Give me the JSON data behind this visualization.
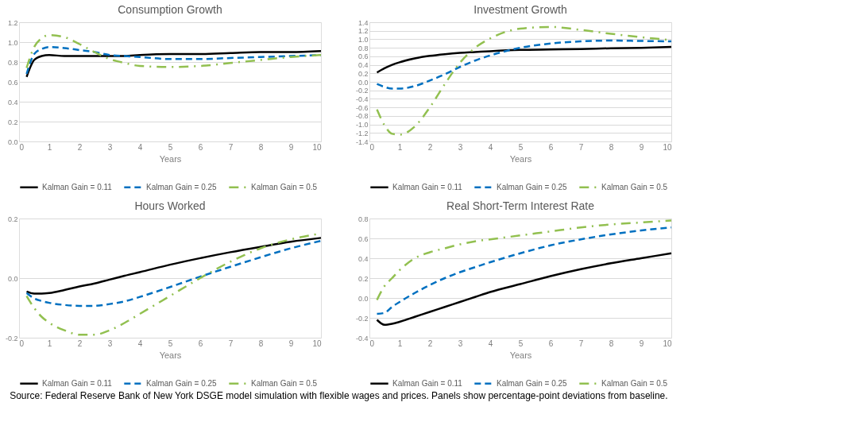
{
  "chart_data": [
    {
      "type": "line",
      "title": "Consumption Growth",
      "xlabel": "Years",
      "x": [
        0.25,
        0.5,
        0.75,
        1,
        1.5,
        2,
        2.5,
        3,
        3.5,
        4,
        5,
        6,
        7,
        8,
        9,
        10
      ],
      "series": [
        {
          "name": "Kalman Gain = 0.11",
          "color": "#000000",
          "line_style": "solid",
          "values": [
            0.65,
            0.82,
            0.86,
            0.87,
            0.86,
            0.86,
            0.86,
            0.86,
            0.86,
            0.87,
            0.88,
            0.88,
            0.89,
            0.9,
            0.9,
            0.91
          ]
        },
        {
          "name": "Kalman Gain = 0.25",
          "color": "#0070c0",
          "line_style": "dashed",
          "values": [
            0.68,
            0.88,
            0.93,
            0.95,
            0.94,
            0.92,
            0.9,
            0.87,
            0.86,
            0.85,
            0.83,
            0.83,
            0.84,
            0.85,
            0.86,
            0.87
          ]
        },
        {
          "name": "Kalman Gain = 0.5",
          "color": "#92c050",
          "line_style": "dotted",
          "values": [
            0.74,
            0.95,
            1.04,
            1.07,
            1.05,
            0.98,
            0.9,
            0.83,
            0.79,
            0.76,
            0.75,
            0.76,
            0.79,
            0.82,
            0.85,
            0.87
          ]
        }
      ],
      "xlim": [
        0,
        10
      ],
      "xticks": [
        0,
        1,
        2,
        3,
        4,
        5,
        6,
        7,
        8,
        9,
        10
      ],
      "ylim": [
        0,
        1.2
      ],
      "yticks": [
        {
          "value": 0,
          "label": "0.0"
        },
        0.2,
        0.4,
        0.6,
        0.8,
        {
          "value": 1,
          "label": "1.0"
        },
        1.2
      ],
      "grid": "y",
      "legend": "bottom"
    },
    {
      "type": "line",
      "title": "Investment Growth",
      "xlabel": "Years",
      "x": [
        0.25,
        0.5,
        0.75,
        1,
        1.5,
        2,
        2.5,
        3,
        3.5,
        4,
        5,
        6,
        7,
        8,
        9,
        10
      ],
      "series": [
        {
          "name": "Kalman Gain = 0.11",
          "color": "#000000",
          "line_style": "solid",
          "values": [
            0.22,
            0.32,
            0.4,
            0.46,
            0.55,
            0.61,
            0.65,
            0.68,
            0.7,
            0.72,
            0.75,
            0.76,
            0.77,
            0.79,
            0.8,
            0.82
          ]
        },
        {
          "name": "Kalman Gain = 0.25",
          "color": "#0070c0",
          "line_style": "dashed",
          "values": [
            -0.05,
            -0.12,
            -0.16,
            -0.16,
            -0.1,
            0.03,
            0.18,
            0.35,
            0.5,
            0.62,
            0.8,
            0.9,
            0.95,
            0.97,
            0.96,
            0.95
          ]
        },
        {
          "name": "Kalman Gain = 0.5",
          "color": "#92c050",
          "line_style": "dotted",
          "values": [
            -0.65,
            -1.02,
            -1.22,
            -1.24,
            -1.05,
            -0.6,
            -0.05,
            0.45,
            0.8,
            1.02,
            1.25,
            1.29,
            1.22,
            1.13,
            1.05,
            0.98
          ]
        }
      ],
      "xlim": [
        0,
        10
      ],
      "xticks": [
        0,
        1,
        2,
        3,
        4,
        5,
        6,
        7,
        8,
        9,
        10
      ],
      "ylim": [
        -1.4,
        1.4
      ],
      "yticks": [
        -1.4,
        -1.2,
        {
          "value": -1,
          "label": "-1.0"
        },
        -0.8,
        -0.6,
        -0.4,
        -0.2,
        {
          "value": 0,
          "label": "0.0"
        },
        0.2,
        0.4,
        0.6,
        0.8,
        {
          "value": 1,
          "label": "1.0"
        },
        1.2,
        1.4
      ],
      "grid": "y",
      "legend": "bottom"
    },
    {
      "type": "line",
      "title": "Hours Worked",
      "xlabel": "Years",
      "x": [
        0.25,
        0.5,
        0.75,
        1,
        1.5,
        2,
        2.5,
        3,
        3.5,
        4,
        5,
        6,
        7,
        8,
        9,
        10
      ],
      "series": [
        {
          "name": "Kalman Gain = 0.11",
          "color": "#000000",
          "line_style": "solid",
          "values": [
            -0.045,
            -0.052,
            -0.052,
            -0.05,
            -0.04,
            -0.028,
            -0.018,
            -0.005,
            0.008,
            0.02,
            0.045,
            0.067,
            0.087,
            0.105,
            0.122,
            0.135
          ]
        },
        {
          "name": "Kalman Gain = 0.25",
          "color": "#0070c0",
          "line_style": "dashed",
          "values": [
            -0.05,
            -0.068,
            -0.077,
            -0.083,
            -0.09,
            -0.093,
            -0.093,
            -0.087,
            -0.078,
            -0.063,
            -0.03,
            0.005,
            0.038,
            0.07,
            0.1,
            0.125
          ]
        },
        {
          "name": "Kalman Gain = 0.5",
          "color": "#92c050",
          "line_style": "dotted",
          "values": [
            -0.06,
            -0.1,
            -0.13,
            -0.15,
            -0.175,
            -0.19,
            -0.19,
            -0.175,
            -0.15,
            -0.12,
            -0.06,
            0.0,
            0.055,
            0.1,
            0.13,
            0.15
          ]
        }
      ],
      "xlim": [
        0,
        10
      ],
      "xticks": [
        0,
        1,
        2,
        3,
        4,
        5,
        6,
        7,
        8,
        9,
        10
      ],
      "ylim": [
        -0.2,
        0.2
      ],
      "yticks": [
        -0.2,
        {
          "value": 0,
          "label": "0.0"
        },
        0.2
      ],
      "grid": "y",
      "legend": "bottom"
    },
    {
      "type": "line",
      "title": "Real Short-Term Interest Rate",
      "xlabel": "Years",
      "x": [
        0.25,
        0.5,
        0.75,
        1,
        1.5,
        2,
        2.5,
        3,
        3.5,
        4,
        5,
        6,
        7,
        8,
        9,
        10
      ],
      "series": [
        {
          "name": "Kalman Gain = 0.11",
          "color": "#000000",
          "line_style": "solid",
          "values": [
            -0.22,
            -0.27,
            -0.26,
            -0.24,
            -0.19,
            -0.14,
            -0.09,
            -0.04,
            0.01,
            0.06,
            0.14,
            0.22,
            0.29,
            0.35,
            0.4,
            0.45
          ]
        },
        {
          "name": "Kalman Gain = 0.25",
          "color": "#0070c0",
          "line_style": "dashed",
          "values": [
            -0.16,
            -0.15,
            -0.09,
            -0.04,
            0.05,
            0.13,
            0.2,
            0.26,
            0.31,
            0.36,
            0.45,
            0.53,
            0.59,
            0.64,
            0.68,
            0.71
          ]
        },
        {
          "name": "Kalman Gain = 0.5",
          "color": "#92c050",
          "line_style": "dotted",
          "values": [
            -0.02,
            0.12,
            0.2,
            0.28,
            0.4,
            0.46,
            0.5,
            0.54,
            0.57,
            0.59,
            0.63,
            0.67,
            0.71,
            0.74,
            0.76,
            0.78
          ]
        }
      ],
      "xlim": [
        0,
        10
      ],
      "xticks": [
        0,
        1,
        2,
        3,
        4,
        5,
        6,
        7,
        8,
        9,
        10
      ],
      "ylim": [
        -0.4,
        0.8
      ],
      "yticks": [
        -0.4,
        -0.2,
        {
          "value": 0,
          "label": "0.0"
        },
        0.2,
        0.4,
        0.6,
        0.8
      ],
      "grid": "y",
      "legend": "bottom",
      "annotations": [
        "Source: Federal Reserve Bank of New York DSGE model simulation with flexible wages and prices. Panels show percentage-point deviations from baseline."
      ]
    }
  ]
}
